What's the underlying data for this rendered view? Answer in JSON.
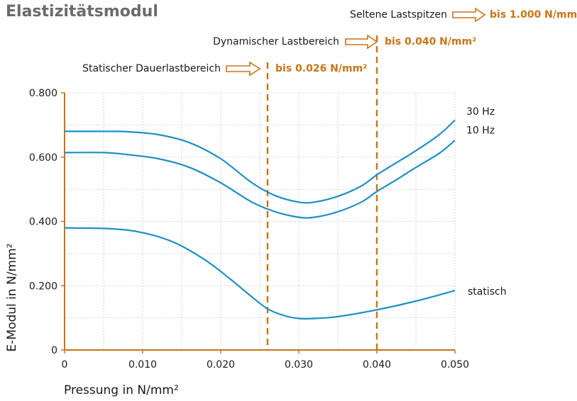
{
  "title": "Elastizitätsmodul",
  "colors": {
    "curve": "#1f8fc6",
    "accent": "#c87417",
    "grid": "#b8b8b8",
    "text": "#1a1a1a"
  },
  "annotations": [
    {
      "label": "Seltene Lastspitzen",
      "value": "bis 1.000 N/mm²"
    },
    {
      "label": "Dynamischer Lastbereich",
      "value": "bis 0.040 N/mm²",
      "x": 0.04
    },
    {
      "label": "Statischer Dauerlastbereich",
      "value": "bis 0.026 N/mm²",
      "x": 0.026
    }
  ],
  "chart_data": {
    "type": "line",
    "title": "Elastizitätsmodul",
    "xlabel": "Pressung in N/mm²",
    "ylabel": "E-Modul in N/mm²",
    "xlim": [
      0,
      0.05
    ],
    "ylim": [
      0,
      0.8
    ],
    "xticks": [
      0,
      0.01,
      0.02,
      0.03,
      0.04,
      0.05
    ],
    "xtick_labels": [
      "0",
      "0.010",
      "0.020",
      "0.030",
      "0.040",
      "0.050"
    ],
    "yticks": [
      0,
      0.2,
      0.4,
      0.6,
      0.8
    ],
    "ytick_labels": [
      "0",
      "0.200",
      "0.400",
      "0.600",
      "0.800"
    ],
    "grid": true,
    "series": [
      {
        "name": "30 Hz",
        "x": [
          0,
          0.005,
          0.008,
          0.012,
          0.016,
          0.02,
          0.024,
          0.027,
          0.03,
          0.032,
          0.035,
          0.038,
          0.04,
          0.042,
          0.045,
          0.048,
          0.05
        ],
        "y": [
          0.68,
          0.68,
          0.679,
          0.67,
          0.645,
          0.595,
          0.52,
          0.48,
          0.46,
          0.46,
          0.478,
          0.51,
          0.545,
          0.575,
          0.62,
          0.67,
          0.715
        ]
      },
      {
        "name": "10 Hz",
        "x": [
          0,
          0.005,
          0.008,
          0.012,
          0.016,
          0.02,
          0.024,
          0.027,
          0.03,
          0.032,
          0.035,
          0.038,
          0.04,
          0.042,
          0.045,
          0.048,
          0.05
        ],
        "y": [
          0.614,
          0.614,
          0.608,
          0.595,
          0.568,
          0.52,
          0.46,
          0.43,
          0.413,
          0.413,
          0.43,
          0.46,
          0.493,
          0.522,
          0.568,
          0.612,
          0.652
        ]
      },
      {
        "name": "statisch",
        "x": [
          0,
          0.006,
          0.01,
          0.014,
          0.018,
          0.021,
          0.024,
          0.026,
          0.028,
          0.03,
          0.032,
          0.035,
          0.04,
          0.045,
          0.05
        ],
        "y": [
          0.38,
          0.377,
          0.365,
          0.335,
          0.28,
          0.225,
          0.165,
          0.128,
          0.108,
          0.098,
          0.098,
          0.104,
          0.125,
          0.152,
          0.185
        ]
      }
    ]
  }
}
